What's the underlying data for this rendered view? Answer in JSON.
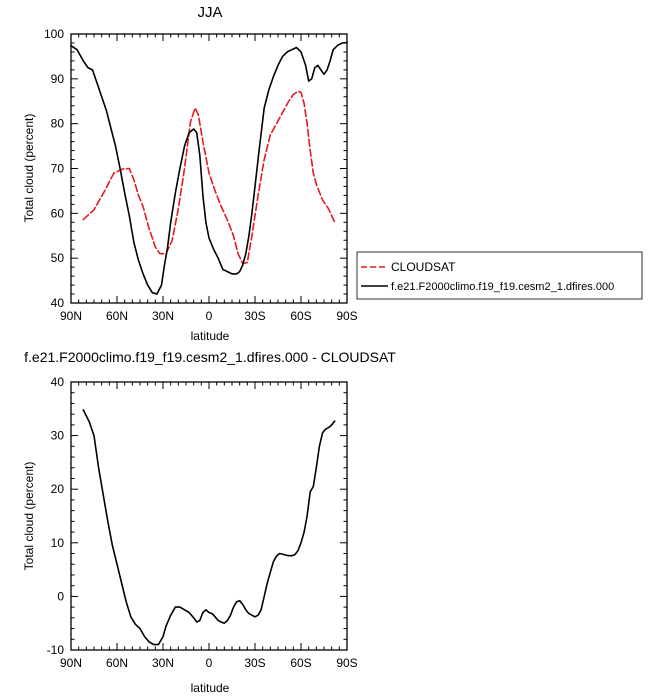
{
  "chart_data": [
    {
      "type": "line",
      "title": "JJA",
      "xlabel": "latitude",
      "ylabel": "Total cloud (percent)",
      "xlim": [
        90,
        -90
      ],
      "ylim": [
        40,
        100
      ],
      "xtick_values": [
        90,
        60,
        30,
        0,
        -30,
        -60,
        -90
      ],
      "xtick_labels": [
        "90N",
        "60N",
        "30N",
        "0",
        "30S",
        "60S",
        "90S"
      ],
      "ytick_values": [
        40,
        50,
        60,
        70,
        80,
        90,
        100
      ],
      "ytick_labels": [
        "40",
        "50",
        "60",
        "70",
        "80",
        "90",
        "100"
      ],
      "legend_position": "right",
      "series": [
        {
          "name": "CLOUDSAT",
          "color": "#e41a1c",
          "dash": "dashed",
          "x": [
            82,
            75,
            68,
            62,
            56,
            52,
            49,
            46,
            43,
            41,
            39,
            37,
            35,
            32,
            28,
            24,
            20,
            16,
            12,
            9,
            7,
            4,
            0,
            -4,
            -8,
            -12,
            -16,
            -19,
            -22,
            -25,
            -28,
            -32,
            -36,
            -40,
            -44,
            -48,
            -52,
            -55,
            -58,
            -60,
            -62,
            -64,
            -66,
            -68,
            -70,
            -74,
            -78,
            -82
          ],
          "y": [
            58.6,
            60.8,
            65.0,
            69.0,
            69.9,
            70.0,
            67.5,
            64.0,
            61.5,
            59.0,
            56.5,
            54.5,
            52.5,
            51.0,
            51.0,
            54.0,
            61.0,
            70.0,
            80.5,
            83.5,
            82.0,
            76.0,
            69.0,
            65.0,
            61.5,
            58.5,
            55.0,
            51.0,
            48.8,
            49.0,
            55.0,
            64.0,
            72.0,
            77.5,
            80.0,
            82.5,
            85.0,
            86.5,
            87.2,
            87.0,
            84.5,
            80.0,
            74.0,
            69.0,
            66.5,
            63.0,
            61.0,
            58.0
          ]
        },
        {
          "name": "f.e21.F2000climo.f19_f19.cesm2_1.dfires.000",
          "color": "#000000",
          "dash": "solid",
          "x": [
            90,
            86,
            82,
            79,
            76,
            73,
            70,
            67,
            64,
            61,
            58,
            55,
            52,
            49,
            46,
            43,
            40,
            37,
            34,
            31,
            29,
            27,
            25,
            22,
            19,
            16,
            13,
            10,
            8,
            6,
            4,
            2,
            0,
            -3,
            -6,
            -9,
            -12,
            -15,
            -18,
            -20,
            -22,
            -24,
            -26,
            -28,
            -30,
            -33,
            -36,
            -39,
            -42,
            -45,
            -48,
            -51,
            -54,
            -57,
            -60,
            -63,
            -65,
            -67,
            -69,
            -71,
            -73,
            -75,
            -77,
            -79,
            -81,
            -84,
            -87,
            -90
          ],
          "y": [
            97.4,
            96.5,
            94.0,
            92.5,
            92.0,
            89.0,
            86.0,
            83.0,
            79.0,
            75.0,
            70.0,
            64.5,
            59.5,
            53.5,
            49.5,
            46.5,
            44.0,
            42.3,
            42.0,
            44.0,
            48.5,
            52.5,
            58.0,
            64.5,
            70.0,
            75.0,
            78.0,
            78.8,
            78.0,
            73.0,
            64.0,
            58.0,
            54.5,
            52.0,
            50.0,
            47.5,
            47.0,
            46.5,
            46.5,
            47.0,
            48.5,
            51.0,
            55.0,
            60.0,
            66.0,
            75.0,
            83.5,
            87.5,
            90.5,
            93.0,
            95.0,
            96.0,
            96.5,
            97.0,
            96.0,
            93.0,
            89.5,
            90.0,
            92.5,
            93.0,
            92.0,
            91.0,
            92.0,
            94.0,
            96.5,
            97.5,
            98.0,
            98.1
          ]
        }
      ]
    },
    {
      "type": "line",
      "title": "f.e21.F2000climo.f19_f19.cesm2_1.dfires.000 - CLOUDSAT",
      "xlabel": "latitude",
      "ylabel": "Total cloud (percent)",
      "xlim": [
        90,
        -90
      ],
      "ylim": [
        -10,
        40
      ],
      "xtick_values": [
        90,
        60,
        30,
        0,
        -30,
        -60,
        -90
      ],
      "xtick_labels": [
        "90N",
        "60N",
        "30N",
        "0",
        "30S",
        "60S",
        "90S"
      ],
      "ytick_values": [
        -10,
        0,
        10,
        20,
        30,
        40
      ],
      "ytick_labels": [
        "-10",
        "0",
        "10",
        "20",
        "30",
        "40"
      ],
      "series": [
        {
          "color": "#000000",
          "dash": "solid",
          "x": [
            82,
            78,
            75,
            72,
            69,
            66,
            63,
            60,
            57,
            54,
            51,
            48,
            45,
            42,
            39,
            36,
            33,
            30,
            28,
            25,
            22,
            19,
            16,
            13,
            10,
            8,
            6,
            4,
            2,
            0,
            -2,
            -4,
            -6,
            -8,
            -10,
            -12,
            -14,
            -16,
            -18,
            -20,
            -22,
            -24,
            -26,
            -28,
            -30,
            -32,
            -34,
            -36,
            -38,
            -40,
            -42,
            -44,
            -46,
            -48,
            -50,
            -52,
            -54,
            -56,
            -58,
            -60,
            -62,
            -64,
            -66,
            -68,
            -70,
            -72,
            -74,
            -76,
            -78,
            -80,
            -82
          ],
          "y": [
            34.8,
            32.5,
            30.0,
            24.0,
            19.0,
            14.0,
            9.5,
            6.0,
            2.5,
            -1.0,
            -3.8,
            -5.2,
            -6.0,
            -7.5,
            -8.5,
            -9.0,
            -9.0,
            -7.5,
            -5.5,
            -3.5,
            -2.0,
            -2.0,
            -2.5,
            -3.0,
            -4.0,
            -4.8,
            -4.5,
            -3.0,
            -2.5,
            -3.0,
            -3.2,
            -3.8,
            -4.5,
            -4.8,
            -5.0,
            -4.5,
            -3.5,
            -2.0,
            -1.0,
            -0.8,
            -1.5,
            -2.5,
            -3.2,
            -3.5,
            -3.8,
            -3.5,
            -2.5,
            0.0,
            2.5,
            4.5,
            6.5,
            7.5,
            8.0,
            7.9,
            7.7,
            7.6,
            7.6,
            7.8,
            8.5,
            10.0,
            12.0,
            15.0,
            19.5,
            20.5,
            24.0,
            28.0,
            30.5,
            31.2,
            31.5,
            32.0,
            32.7
          ]
        }
      ]
    }
  ]
}
